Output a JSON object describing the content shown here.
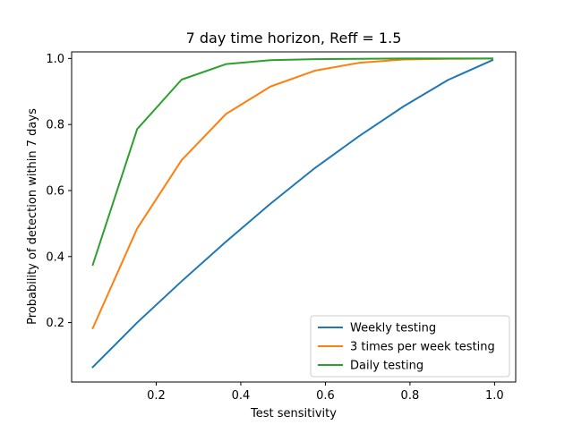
{
  "chart_data": {
    "type": "line",
    "title": "7 day time horizon, Reff = 1.5",
    "xlabel": "Test sensitivity",
    "ylabel": "Probability of detection within 7 days",
    "xlim": [
      0.0,
      1.05
    ],
    "ylim": [
      0.02,
      1.02
    ],
    "xticks": [
      0.2,
      0.4,
      0.6,
      0.8,
      1.0
    ],
    "xtick_labels": [
      "0.2",
      "0.4",
      "0.6",
      "0.8",
      "1.0"
    ],
    "yticks": [
      0.2,
      0.4,
      0.6,
      0.8,
      1.0
    ],
    "ytick_labels": [
      "0.2",
      "0.4",
      "0.6",
      "0.8",
      "1.0"
    ],
    "grid": false,
    "legend_position": "lower-right",
    "x": [
      0.05,
      0.155,
      0.26,
      0.365,
      0.47,
      0.575,
      0.68,
      0.785,
      0.89,
      0.995
    ],
    "series": [
      {
        "name": "Weekly testing",
        "color": "#1f77b4",
        "values": [
          0.065,
          0.2,
          0.325,
          0.445,
          0.56,
          0.668,
          0.765,
          0.855,
          0.935,
          0.995
        ]
      },
      {
        "name": "3 times per week testing",
        "color": "#ff7f0e",
        "values": [
          0.183,
          0.485,
          0.692,
          0.832,
          0.915,
          0.963,
          0.987,
          0.997,
          0.999,
          1.0
        ]
      },
      {
        "name": "Daily testing",
        "color": "#2ca02c",
        "values": [
          0.375,
          0.786,
          0.936,
          0.983,
          0.995,
          0.998,
          0.999,
          1.0,
          1.0,
          1.0
        ]
      }
    ]
  }
}
